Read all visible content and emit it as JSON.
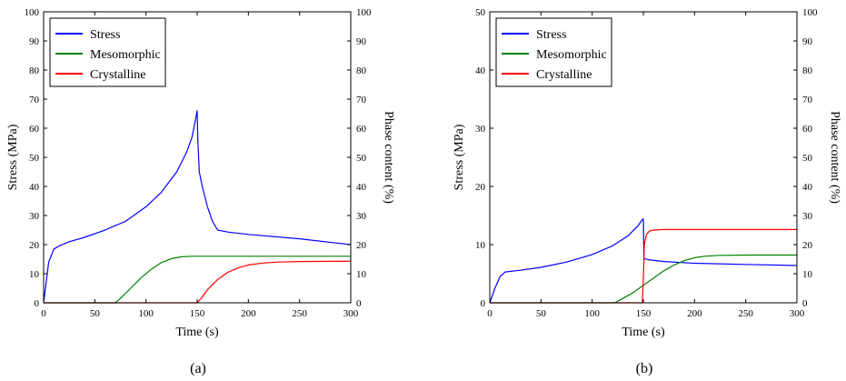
{
  "chart_data": [
    {
      "type": "line",
      "caption": "(a)",
      "xlabel": "Time (s)",
      "ylabel": "Stress (MPa)",
      "y2label": "Phase content (%)",
      "xlim": [
        0,
        300
      ],
      "ylim": [
        0,
        100
      ],
      "y2lim": [
        0,
        100
      ],
      "x_ticks": [
        "0",
        "50",
        "100",
        "150",
        "200",
        "250",
        "300"
      ],
      "y_ticks": [
        "0",
        "10",
        "20",
        "30",
        "40",
        "50",
        "60",
        "70",
        "80",
        "90",
        "100"
      ],
      "y2_ticks": [
        "0",
        "10",
        "20",
        "30",
        "40",
        "50",
        "60",
        "70",
        "80",
        "90",
        "100"
      ],
      "legend_position": "top-left",
      "series": [
        {
          "name": "Stress",
          "color": "#0000ff",
          "axis": "left",
          "x": [
            0,
            5,
            10,
            15,
            25,
            40,
            60,
            80,
            100,
            115,
            130,
            140,
            145,
            150,
            150.5,
            152,
            155,
            160,
            165,
            170,
            180,
            200,
            250,
            300
          ],
          "y": [
            0,
            14,
            18.5,
            19.5,
            21,
            22.5,
            25,
            28,
            33,
            38,
            45,
            52,
            57,
            66,
            57,
            45,
            40,
            33,
            28,
            25,
            24.3,
            23.5,
            22,
            20
          ]
        },
        {
          "name": "Mesomorphic",
          "color": "#008000",
          "axis": "right",
          "x": [
            0,
            70,
            75,
            85,
            95,
            105,
            115,
            125,
            135,
            145,
            160,
            200,
            300
          ],
          "y": [
            0,
            0,
            1.5,
            5,
            8.5,
            11.5,
            13.8,
            15.2,
            15.8,
            16,
            16,
            16,
            16
          ]
        },
        {
          "name": "Crystalline",
          "color": "#ff0000",
          "axis": "right",
          "x": [
            0,
            150,
            155,
            160,
            170,
            180,
            190,
            200,
            215,
            230,
            250,
            300
          ],
          "y": [
            0,
            0,
            2,
            4.5,
            8,
            10.5,
            12,
            13,
            13.7,
            14,
            14.2,
            14.3
          ]
        }
      ]
    },
    {
      "type": "line",
      "caption": "(b)",
      "xlabel": "Time (s)",
      "ylabel": "Stress (MPa)",
      "y2label": "Phase content (%)",
      "xlim": [
        0,
        300
      ],
      "ylim": [
        0,
        50
      ],
      "y2lim": [
        0,
        100
      ],
      "x_ticks": [
        "0",
        "50",
        "100",
        "150",
        "200",
        "250",
        "300"
      ],
      "y_ticks": [
        "0",
        "10",
        "20",
        "30",
        "40",
        "50"
      ],
      "y2_ticks": [
        "0",
        "10",
        "20",
        "30",
        "40",
        "50",
        "60",
        "70",
        "80",
        "90",
        "100"
      ],
      "legend_position": "top-left",
      "series": [
        {
          "name": "Stress",
          "color": "#0000ff",
          "axis": "left",
          "x": [
            0,
            5,
            10,
            15,
            30,
            50,
            75,
            100,
            120,
            135,
            145,
            149,
            150,
            150.5,
            155,
            170,
            200,
            250,
            300
          ],
          "y": [
            0,
            2.5,
            4.5,
            5.3,
            5.6,
            6.1,
            7,
            8.3,
            9.8,
            11.5,
            13.3,
            14.3,
            14.4,
            7.6,
            7.4,
            7.1,
            6.8,
            6.6,
            6.4
          ]
        },
        {
          "name": "Mesomorphic",
          "color": "#008000",
          "axis": "right",
          "x": [
            0,
            122,
            130,
            140,
            150,
            160,
            170,
            180,
            190,
            200,
            210,
            225,
            250,
            300
          ],
          "y": [
            0,
            0,
            1.5,
            3.5,
            6,
            8.5,
            11,
            13,
            14.5,
            15.5,
            16,
            16.3,
            16.4,
            16.4
          ]
        },
        {
          "name": "Crystalline",
          "color": "#ff0000",
          "axis": "right",
          "x": [
            0,
            149,
            150,
            151,
            153,
            156,
            160,
            170,
            200,
            300
          ],
          "y": [
            0,
            0,
            8,
            20,
            23.5,
            24.7,
            25,
            25.2,
            25.2,
            25.2
          ]
        }
      ]
    }
  ]
}
